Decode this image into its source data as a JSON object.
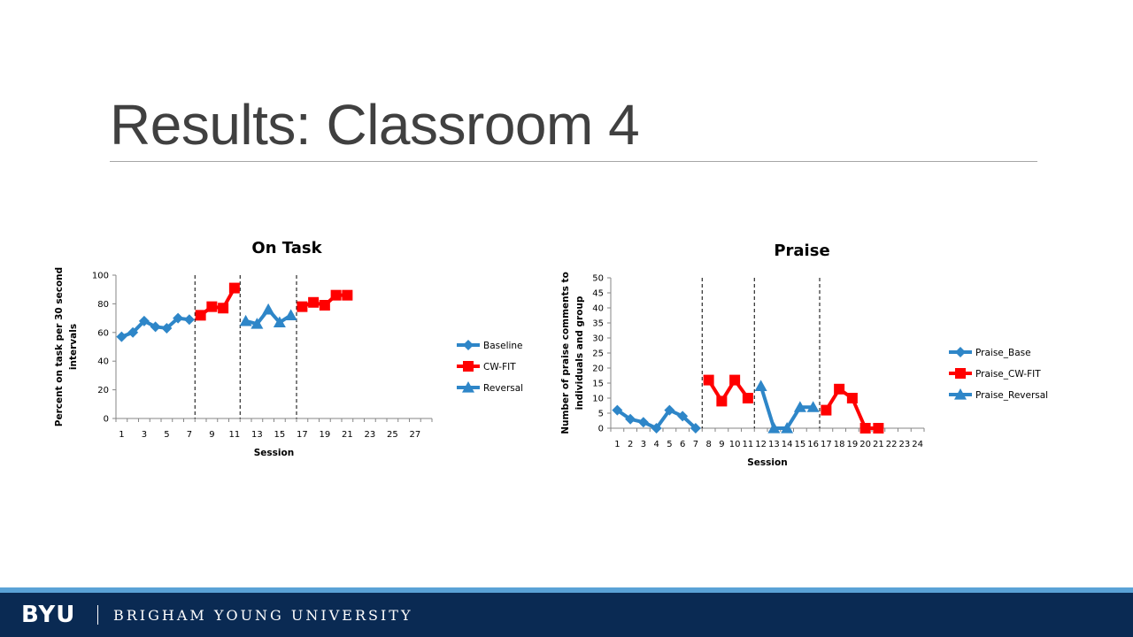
{
  "slide": {
    "title": "Results: Classroom 4"
  },
  "footer": {
    "logo": "BYU",
    "name": "BRIGHAM YOUNG UNIVERSITY"
  },
  "colors": {
    "baseline": "#2e86c8",
    "cwfit": "#ff0000",
    "reversal": "#2e86c8"
  },
  "chart_data": [
    {
      "type": "line",
      "title": "On Task",
      "xlabel": "Session",
      "ylabel_lines": [
        "Percent on task per 30 second",
        "intervals"
      ],
      "xlim": [
        1,
        28
      ],
      "ylim": [
        0,
        100
      ],
      "yticks": [
        0,
        20,
        40,
        60,
        80,
        100
      ],
      "xticks": [
        1,
        3,
        5,
        7,
        9,
        11,
        13,
        15,
        17,
        19,
        21,
        23,
        25,
        27
      ],
      "phase_lines": [
        7.5,
        11.5,
        16.5
      ],
      "legend": "right",
      "series": [
        {
          "name": "Baseline",
          "marker": "diamond",
          "color": "#2e86c8",
          "segments": [
            {
              "x": [
                1,
                2,
                3,
                4,
                5,
                6,
                7
              ],
              "y": [
                57,
                60,
                68,
                64,
                63,
                70,
                69
              ]
            }
          ]
        },
        {
          "name": "CW-FIT",
          "marker": "square",
          "color": "#ff0000",
          "segments": [
            {
              "x": [
                8,
                9,
                10,
                11
              ],
              "y": [
                72,
                78,
                77,
                91
              ]
            },
            {
              "x": [
                17,
                18,
                19,
                20,
                21
              ],
              "y": [
                78,
                81,
                79,
                86,
                86
              ]
            }
          ]
        },
        {
          "name": "Reversal",
          "marker": "triangle",
          "color": "#2e86c8",
          "segments": [
            {
              "x": [
                12,
                13,
                14,
                15,
                16
              ],
              "y": [
                68,
                66,
                76,
                67,
                72
              ]
            }
          ]
        }
      ]
    },
    {
      "type": "line",
      "title": "Praise",
      "xlabel": "Session",
      "ylabel_lines": [
        "Number of praise comments to",
        "individuals and group"
      ],
      "xlim": [
        1,
        24
      ],
      "ylim": [
        0,
        50
      ],
      "yticks": [
        0,
        5,
        10,
        15,
        20,
        25,
        30,
        35,
        40,
        45,
        50
      ],
      "xticks": [
        1,
        2,
        3,
        4,
        5,
        6,
        7,
        8,
        9,
        10,
        11,
        12,
        13,
        14,
        15,
        16,
        17,
        18,
        19,
        20,
        21,
        22,
        23,
        24
      ],
      "phase_lines": [
        7.5,
        11.5,
        16.5
      ],
      "legend": "right",
      "series": [
        {
          "name": "Praise_Base",
          "marker": "diamond",
          "color": "#2e86c8",
          "segments": [
            {
              "x": [
                1,
                2,
                3,
                4,
                5,
                6,
                7
              ],
              "y": [
                6,
                3,
                2,
                0,
                6,
                4,
                0
              ]
            }
          ]
        },
        {
          "name": "Praise_CW-FIT",
          "marker": "square",
          "color": "#ff0000",
          "segments": [
            {
              "x": [
                8,
                9,
                10,
                11
              ],
              "y": [
                16,
                9,
                16,
                10
              ]
            },
            {
              "x": [
                17,
                18,
                19,
                20,
                21
              ],
              "y": [
                6,
                13,
                10,
                0,
                0
              ]
            }
          ]
        },
        {
          "name": "Praise_Reversal",
          "marker": "triangle",
          "color": "#2e86c8",
          "segments": [
            {
              "x": [
                12,
                13,
                14,
                15,
                16
              ],
              "y": [
                14,
                0,
                0,
                7,
                7
              ]
            }
          ]
        }
      ]
    }
  ]
}
